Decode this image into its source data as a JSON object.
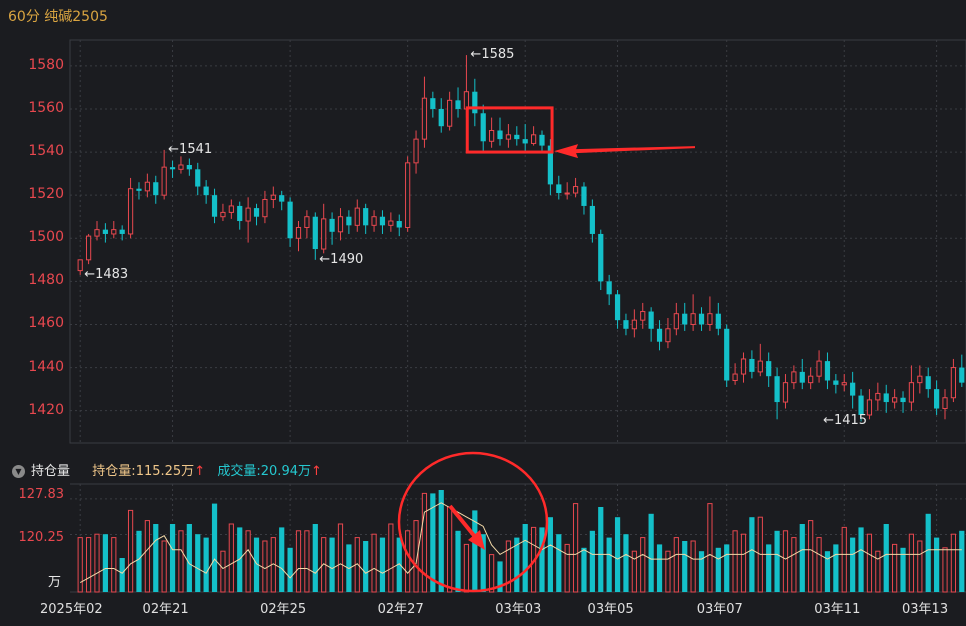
{
  "chart_title": "60分 纯碱2505",
  "volume_panel": {
    "collapse_icon": "triangle-down-icon",
    "label": "持仓量",
    "oi_label": "持仓量:",
    "oi_value": "115.25万",
    "vol_label": "成交量:",
    "vol_value": "20.94万",
    "up_arrow": "↑",
    "y_ticks": [
      "127.83",
      "120.25"
    ],
    "unit": "万"
  },
  "colors": {
    "up": "#e8484f",
    "down": "#14c0c9",
    "oi_line": "#f3d9a8",
    "grid": "#3a3c42",
    "highlight": "#ff2a2a"
  },
  "chart_data": [
    {
      "type": "candlestick",
      "title": "60分 纯碱2505",
      "y_ticks": [
        "1580",
        "1560",
        "1540",
        "1520",
        "1500",
        "1480",
        "1460",
        "1440",
        "1420"
      ],
      "ylim": [
        1405,
        1592
      ],
      "x_ticks": [
        "2025年02",
        "02年21",
        "02年25",
        "02年27",
        "03年03",
        "03年05",
        "03年07",
        "03年11",
        "03年13"
      ],
      "annotations": [
        {
          "text": "←1585",
          "value": 1585,
          "index": 46
        },
        {
          "text": "←1541",
          "value": 1541,
          "index": 10
        },
        {
          "text": "←1490",
          "value": 1490,
          "index": 28
        },
        {
          "text": "←1483",
          "value": 1483,
          "index": 0
        },
        {
          "text": "←1415",
          "value": 1415,
          "index": 88
        }
      ],
      "candles": [
        [
          1485,
          1490,
          1489,
          1483
        ],
        [
          1490,
          1501,
          1502,
          1488
        ],
        [
          1501,
          1504,
          1508,
          1499
        ],
        [
          1504,
          1502,
          1507,
          1498
        ],
        [
          1502,
          1504,
          1508,
          1500
        ],
        [
          1504,
          1502,
          1506,
          1499
        ],
        [
          1502,
          1523,
          1528,
          1500
        ],
        [
          1523,
          1522,
          1526,
          1518
        ],
        [
          1522,
          1526,
          1530,
          1519
        ],
        [
          1526,
          1520,
          1529,
          1516
        ],
        [
          1520,
          1533,
          1541,
          1518
        ],
        [
          1533,
          1532,
          1536,
          1528
        ],
        [
          1532,
          1534,
          1538,
          1530
        ],
        [
          1534,
          1532,
          1537,
          1529
        ],
        [
          1532,
          1524,
          1535,
          1520
        ],
        [
          1524,
          1520,
          1527,
          1516
        ],
        [
          1520,
          1510,
          1523,
          1507
        ],
        [
          1510,
          1512,
          1516,
          1508
        ],
        [
          1512,
          1515,
          1518,
          1509
        ],
        [
          1515,
          1508,
          1517,
          1504
        ],
        [
          1508,
          1514,
          1519,
          1498
        ],
        [
          1514,
          1510,
          1516,
          1506
        ],
        [
          1510,
          1518,
          1522,
          1507
        ],
        [
          1518,
          1520,
          1524,
          1514
        ],
        [
          1520,
          1517,
          1522,
          1513
        ],
        [
          1517,
          1500,
          1519,
          1496
        ],
        [
          1500,
          1505,
          1508,
          1494
        ],
        [
          1505,
          1510,
          1513,
          1500
        ],
        [
          1510,
          1495,
          1512,
          1490
        ],
        [
          1495,
          1509,
          1516,
          1493
        ],
        [
          1509,
          1503,
          1512,
          1497
        ],
        [
          1503,
          1510,
          1514,
          1499
        ],
        [
          1510,
          1506,
          1513,
          1502
        ],
        [
          1506,
          1514,
          1518,
          1503
        ],
        [
          1514,
          1506,
          1516,
          1502
        ],
        [
          1506,
          1510,
          1513,
          1503
        ],
        [
          1510,
          1506,
          1513,
          1502
        ],
        [
          1506,
          1508,
          1512,
          1503
        ],
        [
          1508,
          1505,
          1511,
          1501
        ],
        [
          1505,
          1535,
          1538,
          1503
        ],
        [
          1535,
          1546,
          1550,
          1530
        ],
        [
          1546,
          1565,
          1575,
          1542
        ],
        [
          1565,
          1560,
          1568,
          1556
        ],
        [
          1560,
          1552,
          1565,
          1549
        ],
        [
          1552,
          1564,
          1568,
          1550
        ],
        [
          1564,
          1560,
          1570,
          1556
        ],
        [
          1560,
          1568,
          1585,
          1556
        ],
        [
          1568,
          1558,
          1574,
          1552
        ],
        [
          1558,
          1545,
          1562,
          1540
        ],
        [
          1545,
          1550,
          1556,
          1542
        ],
        [
          1550,
          1546,
          1556,
          1543
        ],
        [
          1546,
          1548,
          1553,
          1542
        ],
        [
          1548,
          1546,
          1552,
          1543
        ],
        [
          1546,
          1544,
          1553,
          1540
        ],
        [
          1544,
          1548,
          1552,
          1543
        ],
        [
          1548,
          1543,
          1550,
          1540
        ],
        [
          1543,
          1525,
          1546,
          1520
        ],
        [
          1525,
          1521,
          1529,
          1518
        ],
        [
          1521,
          1521,
          1526,
          1518
        ],
        [
          1521,
          1524,
          1528,
          1519
        ],
        [
          1524,
          1515,
          1526,
          1511
        ],
        [
          1515,
          1502,
          1518,
          1498
        ],
        [
          1502,
          1480,
          1504,
          1476
        ],
        [
          1480,
          1474,
          1483,
          1469
        ],
        [
          1474,
          1462,
          1476,
          1458
        ],
        [
          1462,
          1458,
          1465,
          1455
        ],
        [
          1458,
          1462,
          1467,
          1454
        ],
        [
          1462,
          1466,
          1470,
          1458
        ],
        [
          1466,
          1458,
          1468,
          1452
        ],
        [
          1458,
          1452,
          1462,
          1448
        ],
        [
          1452,
          1458,
          1463,
          1449
        ],
        [
          1458,
          1465,
          1470,
          1455
        ],
        [
          1465,
          1460,
          1470,
          1457
        ],
        [
          1460,
          1465,
          1474,
          1457
        ],
        [
          1465,
          1460,
          1468,
          1457
        ],
        [
          1460,
          1465,
          1473,
          1457
        ],
        [
          1465,
          1458,
          1470,
          1455
        ],
        [
          1458,
          1434,
          1460,
          1431
        ],
        [
          1434,
          1437,
          1442,
          1432
        ],
        [
          1437,
          1444,
          1447,
          1433
        ],
        [
          1444,
          1438,
          1448,
          1435
        ],
        [
          1438,
          1443,
          1451,
          1436
        ],
        [
          1443,
          1436,
          1447,
          1431
        ],
        [
          1436,
          1424,
          1440,
          1416
        ],
        [
          1424,
          1433,
          1437,
          1421
        ],
        [
          1433,
          1438,
          1441,
          1430
        ],
        [
          1438,
          1433,
          1444,
          1430
        ],
        [
          1433,
          1436,
          1440,
          1430
        ],
        [
          1436,
          1443,
          1448,
          1433
        ],
        [
          1443,
          1434,
          1447,
          1430
        ],
        [
          1434,
          1432,
          1437,
          1428
        ],
        [
          1432,
          1433,
          1437,
          1429
        ],
        [
          1433,
          1427,
          1438,
          1421
        ],
        [
          1427,
          1418,
          1430,
          1415
        ],
        [
          1418,
          1425,
          1430,
          1416
        ],
        [
          1425,
          1428,
          1433,
          1420
        ],
        [
          1428,
          1424,
          1432,
          1419
        ],
        [
          1424,
          1426,
          1430,
          1421
        ],
        [
          1426,
          1424,
          1429,
          1419
        ],
        [
          1424,
          1433,
          1441,
          1420
        ],
        [
          1433,
          1436,
          1441,
          1428
        ],
        [
          1436,
          1430,
          1440,
          1426
        ],
        [
          1430,
          1421,
          1434,
          1418
        ],
        [
          1421,
          1426,
          1430,
          1416
        ],
        [
          1426,
          1440,
          1444,
          1424
        ],
        [
          1440,
          1433,
          1446,
          1431
        ]
      ]
    },
    {
      "type": "bar",
      "ylim": [
        108,
        131
      ],
      "volume": [
        16,
        16,
        17,
        17,
        16,
        10,
        24,
        18,
        21,
        20,
        15,
        20,
        18,
        20,
        17,
        16,
        26,
        12,
        20,
        19,
        18,
        16,
        15,
        16,
        19,
        13,
        18,
        18,
        20,
        16,
        16,
        20,
        14,
        16,
        15,
        17,
        16,
        20,
        16,
        18,
        21,
        29,
        29,
        30,
        25,
        18,
        14,
        24,
        17,
        11,
        9,
        15,
        16,
        20,
        19,
        19,
        22,
        17,
        14,
        26,
        13,
        18,
        25,
        16,
        22,
        17,
        12,
        16,
        23,
        14,
        12,
        16,
        15,
        15,
        12,
        26,
        13,
        14,
        18,
        17,
        22,
        22,
        14,
        18,
        18,
        16,
        20,
        21,
        16,
        12,
        14,
        19,
        16,
        19,
        17,
        12,
        20,
        14,
        13,
        17,
        15,
        23,
        16,
        13,
        17,
        18
      ],
      "oi": [
        110,
        111,
        112,
        113,
        113,
        112,
        114,
        115,
        117,
        119,
        120,
        117,
        117,
        114,
        113,
        112,
        115,
        113,
        114,
        115,
        117,
        114,
        113,
        114,
        113,
        111,
        113,
        113,
        112,
        114,
        113,
        114,
        113,
        114,
        112,
        113,
        112,
        113,
        114,
        112,
        114,
        125,
        126,
        127,
        126,
        125,
        124,
        123,
        122,
        118,
        116,
        117,
        118,
        119,
        118,
        117,
        118,
        117,
        116,
        116,
        117,
        116,
        116,
        116,
        115,
        116,
        115,
        116,
        115,
        115,
        115,
        116,
        116,
        115,
        115,
        116,
        115,
        116,
        116,
        116,
        117,
        116,
        116,
        116,
        115,
        116,
        117,
        117,
        116,
        115,
        116,
        116,
        116,
        117,
        116,
        115,
        116,
        116,
        116,
        116,
        116,
        117,
        117,
        117,
        117,
        117
      ]
    }
  ]
}
